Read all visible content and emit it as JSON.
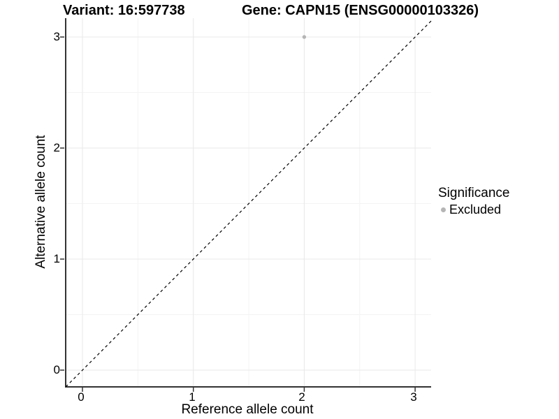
{
  "title": {
    "variant": "Variant: 16:597738",
    "gene": "Gene: CAPN15 (ENSG00000103326)"
  },
  "axes": {
    "x": {
      "label": "Reference allele count",
      "tick_labels": [
        "0",
        "1",
        "2",
        "3"
      ]
    },
    "y": {
      "label": "Alternative allele count",
      "tick_labels": [
        "0",
        "1",
        "2",
        "3"
      ]
    }
  },
  "legend": {
    "title": "Significance",
    "items": [
      {
        "label": "Excluded",
        "color": "#b5b5b5"
      }
    ]
  },
  "colors": {
    "background": "#ffffff",
    "axis_line": "#333333",
    "major_grid": "#e8e8e8",
    "minor_grid": "#f3f3f3",
    "tick_mark": "#333333",
    "point": "#b5b5b5",
    "reference_line": "#000000"
  },
  "chart_data": {
    "type": "scatter",
    "title": "Variant: 16:597738    Gene: CAPN15 (ENSG00000103326)",
    "xlabel": "Reference allele count",
    "ylabel": "Alternative allele count",
    "xlim": [
      -0.15,
      3.15
    ],
    "ylim": [
      -0.15,
      3.17
    ],
    "x_ticks": [
      0,
      1,
      2,
      3
    ],
    "y_ticks": [
      0,
      1,
      2,
      3
    ],
    "x_minor_ticks": [
      0.5,
      1.5,
      2.5
    ],
    "y_minor_ticks": [
      0.5,
      1.5,
      2.5
    ],
    "grid": true,
    "legend_position": "right",
    "series": [
      {
        "name": "Excluded",
        "color": "#b5b5b5",
        "points": [
          {
            "x": 2,
            "y": 3
          }
        ]
      }
    ],
    "reference_line": {
      "type": "identity",
      "equation": "y = x",
      "style": "dashed",
      "color": "#000000"
    }
  }
}
